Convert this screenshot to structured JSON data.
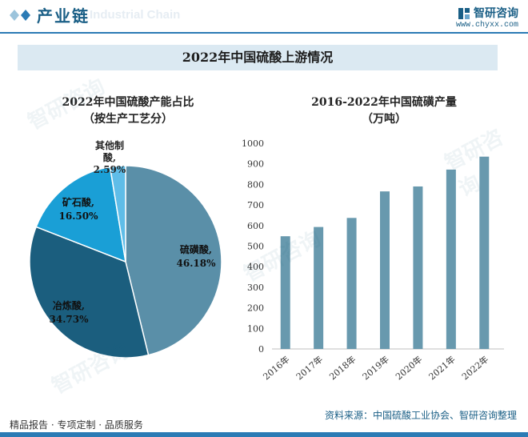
{
  "header": {
    "title": "产业链",
    "subtitle": "Industrial Chain",
    "brand": "智研咨询",
    "url": "www.chyxx.com"
  },
  "main_title": "2022年中国硫酸上游情况",
  "footer": {
    "left": "精品报告 · 专项定制 · 品质服务",
    "right": "资料来源：中国硫酸工业协会、智研咨询整理"
  },
  "watermark": "智研咨询",
  "colors": {
    "accent": "#1a5f86",
    "pie": [
      "#5a8fa8",
      "#1b5e7e",
      "#1a9fd6",
      "#5fbde8"
    ],
    "bar": "#6899ae"
  },
  "chart_data": [
    {
      "type": "pie",
      "title": "2022年中国硫酸产能占比",
      "subtitle": "（按生产工艺分）",
      "slices": [
        {
          "name": "硫磺酸",
          "value": 46.18,
          "label": "46.18%"
        },
        {
          "name": "冶炼酸",
          "value": 34.73,
          "label": "34.73%"
        },
        {
          "name": "矿石酸",
          "value": 16.5,
          "label": "16.50%"
        },
        {
          "name": "其他制酸",
          "value": 2.59,
          "label": "2.59%"
        }
      ]
    },
    {
      "type": "bar",
      "title": "2016-2022年中国硫磺产量",
      "subtitle": "（万吨）",
      "categories": [
        "2016年",
        "2017年",
        "2018年",
        "2019年",
        "2020年",
        "2021年",
        "2022年"
      ],
      "values": [
        548,
        593,
        637,
        766,
        790,
        872,
        935
      ],
      "ylim": [
        0,
        1000
      ],
      "yticks": [
        0,
        100,
        200,
        300,
        400,
        500,
        600,
        700,
        800,
        900,
        1000
      ],
      "grid": false
    }
  ]
}
